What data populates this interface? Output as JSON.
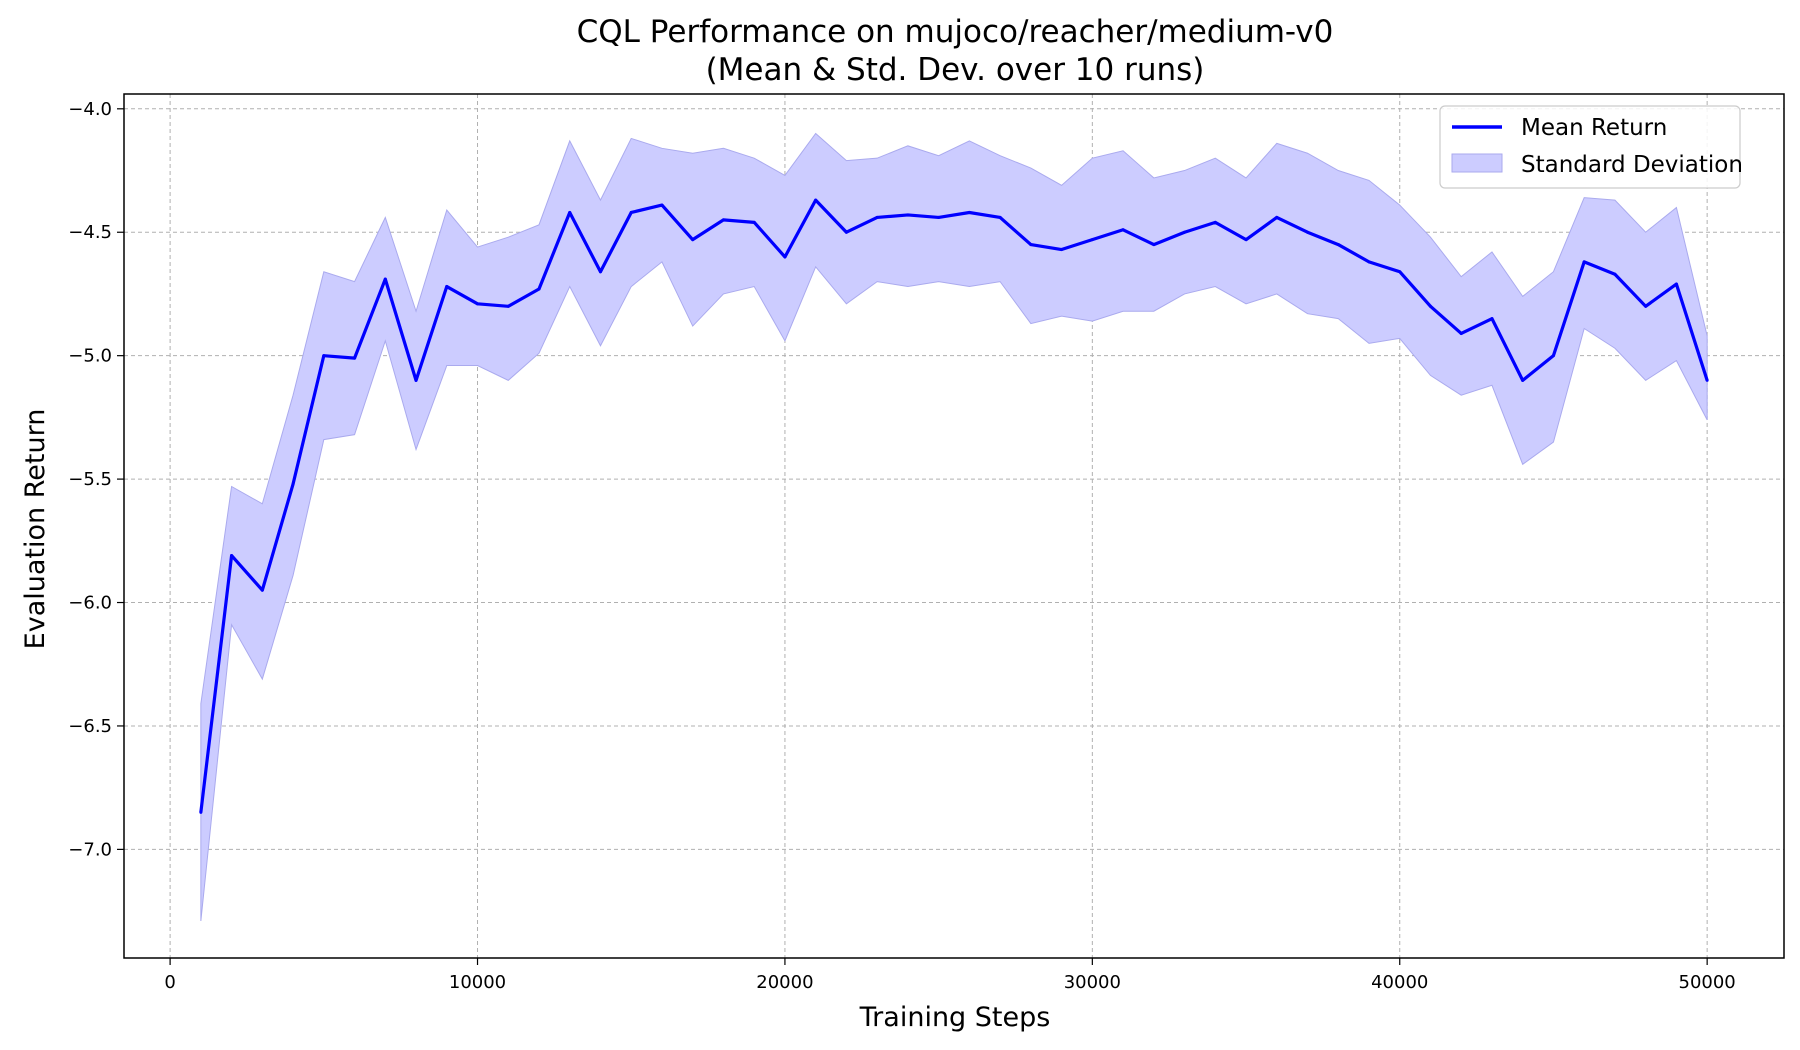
{
  "chart_data": {
    "type": "line",
    "title": "CQL Performance on mujoco/reacher/medium-v0",
    "subtitle": "(Mean & Std. Dev. over 10 runs)",
    "xlabel": "Training Steps",
    "ylabel": "Evaluation Return",
    "xlim": [
      -1500,
      52500
    ],
    "ylim": [
      -7.44,
      -3.94
    ],
    "xticks": [
      0,
      10000,
      20000,
      30000,
      40000,
      50000
    ],
    "xtick_labels": [
      "0",
      "10000",
      "20000",
      "30000",
      "40000",
      "50000"
    ],
    "yticks": [
      -4.0,
      -4.5,
      -5.0,
      -5.5,
      -6.0,
      -6.5,
      -7.0
    ],
    "ytick_labels": [
      "−4.0",
      "−4.5",
      "−5.0",
      "−5.5",
      "−6.0",
      "−6.5",
      "−7.0"
    ],
    "grid": true,
    "legend": {
      "position": "top-right",
      "entries": [
        "Mean Return",
        "Standard Deviation"
      ]
    },
    "colors": {
      "line": "#0000ff",
      "band": "#ccccff",
      "band_edge": "#aaaaee"
    },
    "x": [
      1000,
      2000,
      3000,
      4000,
      5000,
      6000,
      7000,
      8000,
      9000,
      10000,
      11000,
      12000,
      13000,
      14000,
      15000,
      16000,
      17000,
      18000,
      19000,
      20000,
      21000,
      22000,
      23000,
      24000,
      25000,
      26000,
      27000,
      28000,
      29000,
      30000,
      31000,
      32000,
      33000,
      34000,
      35000,
      36000,
      37000,
      38000,
      39000,
      40000,
      41000,
      42000,
      43000,
      44000,
      45000,
      46000,
      47000,
      48000,
      49000,
      50000
    ],
    "series": [
      {
        "name": "Mean Return",
        "values": [
          -6.85,
          -5.81,
          -5.95,
          -5.52,
          -5.0,
          -5.01,
          -4.69,
          -5.1,
          -4.72,
          -4.79,
          -4.8,
          -4.73,
          -4.42,
          -4.66,
          -4.42,
          -4.39,
          -4.53,
          -4.45,
          -4.46,
          -4.6,
          -4.37,
          -4.5,
          -4.44,
          -4.43,
          -4.44,
          -4.42,
          -4.44,
          -4.55,
          -4.57,
          -4.53,
          -4.49,
          -4.55,
          -4.5,
          -4.46,
          -4.53,
          -4.44,
          -4.5,
          -4.55,
          -4.62,
          -4.66,
          -4.8,
          -4.91,
          -4.85,
          -5.1,
          -5.0,
          -4.62,
          -4.67,
          -4.8,
          -4.71,
          -5.1
        ]
      },
      {
        "name": "Standard Deviation",
        "upper": [
          -6.41,
          -5.53,
          -5.6,
          -5.16,
          -4.66,
          -4.7,
          -4.44,
          -4.82,
          -4.41,
          -4.56,
          -4.52,
          -4.47,
          -4.13,
          -4.37,
          -4.12,
          -4.16,
          -4.18,
          -4.16,
          -4.2,
          -4.27,
          -4.1,
          -4.21,
          -4.2,
          -4.15,
          -4.19,
          -4.13,
          -4.19,
          -4.24,
          -4.31,
          -4.2,
          -4.17,
          -4.28,
          -4.25,
          -4.2,
          -4.28,
          -4.14,
          -4.18,
          -4.25,
          -4.29,
          -4.39,
          -4.52,
          -4.68,
          -4.58,
          -4.76,
          -4.66,
          -4.36,
          -4.37,
          -4.5,
          -4.4,
          -4.92
        ],
        "lower": [
          -7.29,
          -6.09,
          -6.31,
          -5.89,
          -5.34,
          -5.32,
          -4.94,
          -5.38,
          -5.04,
          -5.04,
          -5.1,
          -4.99,
          -4.72,
          -4.96,
          -4.72,
          -4.62,
          -4.88,
          -4.75,
          -4.72,
          -4.94,
          -4.64,
          -4.79,
          -4.7,
          -4.72,
          -4.7,
          -4.72,
          -4.7,
          -4.87,
          -4.84,
          -4.86,
          -4.82,
          -4.82,
          -4.75,
          -4.72,
          -4.79,
          -4.75,
          -4.83,
          -4.85,
          -4.95,
          -4.93,
          -5.08,
          -5.16,
          -5.12,
          -5.44,
          -5.35,
          -4.89,
          -4.97,
          -5.1,
          -5.02,
          -5.26
        ]
      }
    ]
  }
}
